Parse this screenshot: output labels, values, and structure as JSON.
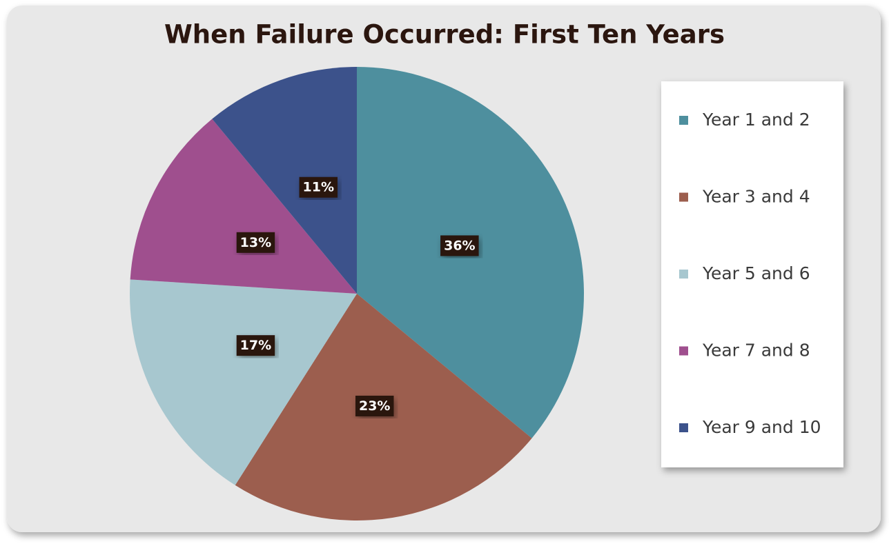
{
  "chart_data": {
    "type": "pie",
    "title": "When Failure Occurred: First Ten Years",
    "categories": [
      "Year 1 and 2",
      "Year 3 and 4",
      "Year 5 and 6",
      "Year 7 and 8",
      "Year 9 and 10"
    ],
    "values": [
      36,
      23,
      17,
      13,
      11
    ],
    "value_labels": [
      "36%",
      "23%",
      "17%",
      "13%",
      "11%"
    ],
    "colors": [
      "#4e8f9e",
      "#9c5e4e",
      "#a7c7cf",
      "#9f4f8e",
      "#3c528b"
    ],
    "legend": "right"
  }
}
